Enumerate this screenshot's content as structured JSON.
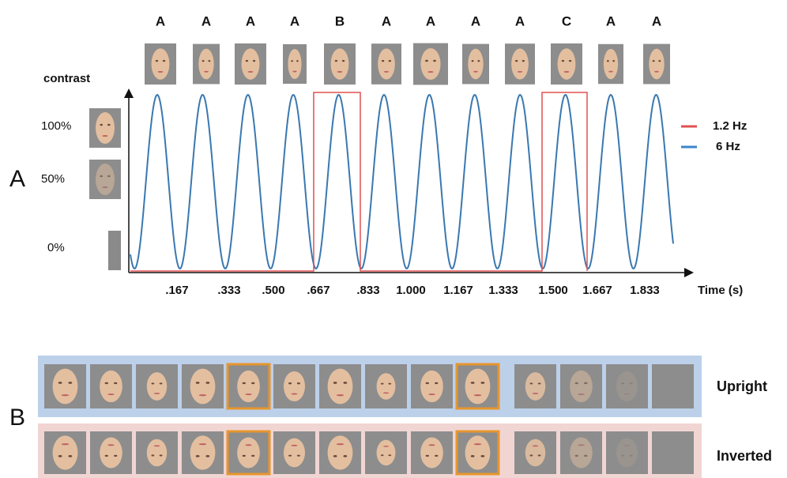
{
  "top_labels": [
    "A",
    "A",
    "A",
    "A",
    "B",
    "A",
    "A",
    "A",
    "A",
    "C",
    "A",
    "A"
  ],
  "contrast_label": "contrast",
  "contrast_levels": [
    "100%",
    "50%",
    "0%"
  ],
  "panels": [
    "A",
    "B"
  ],
  "legend": [
    "1.2 Hz",
    "6 Hz"
  ],
  "time_ticks": [
    ".167",
    ".333",
    ".500",
    ".667",
    ".833",
    "1.000",
    "1.167",
    "1.333",
    "1.500",
    "1.667",
    "1.833"
  ],
  "x_label": "Time (s)",
  "conditions": [
    "Upright",
    "Inverted"
  ]
}
